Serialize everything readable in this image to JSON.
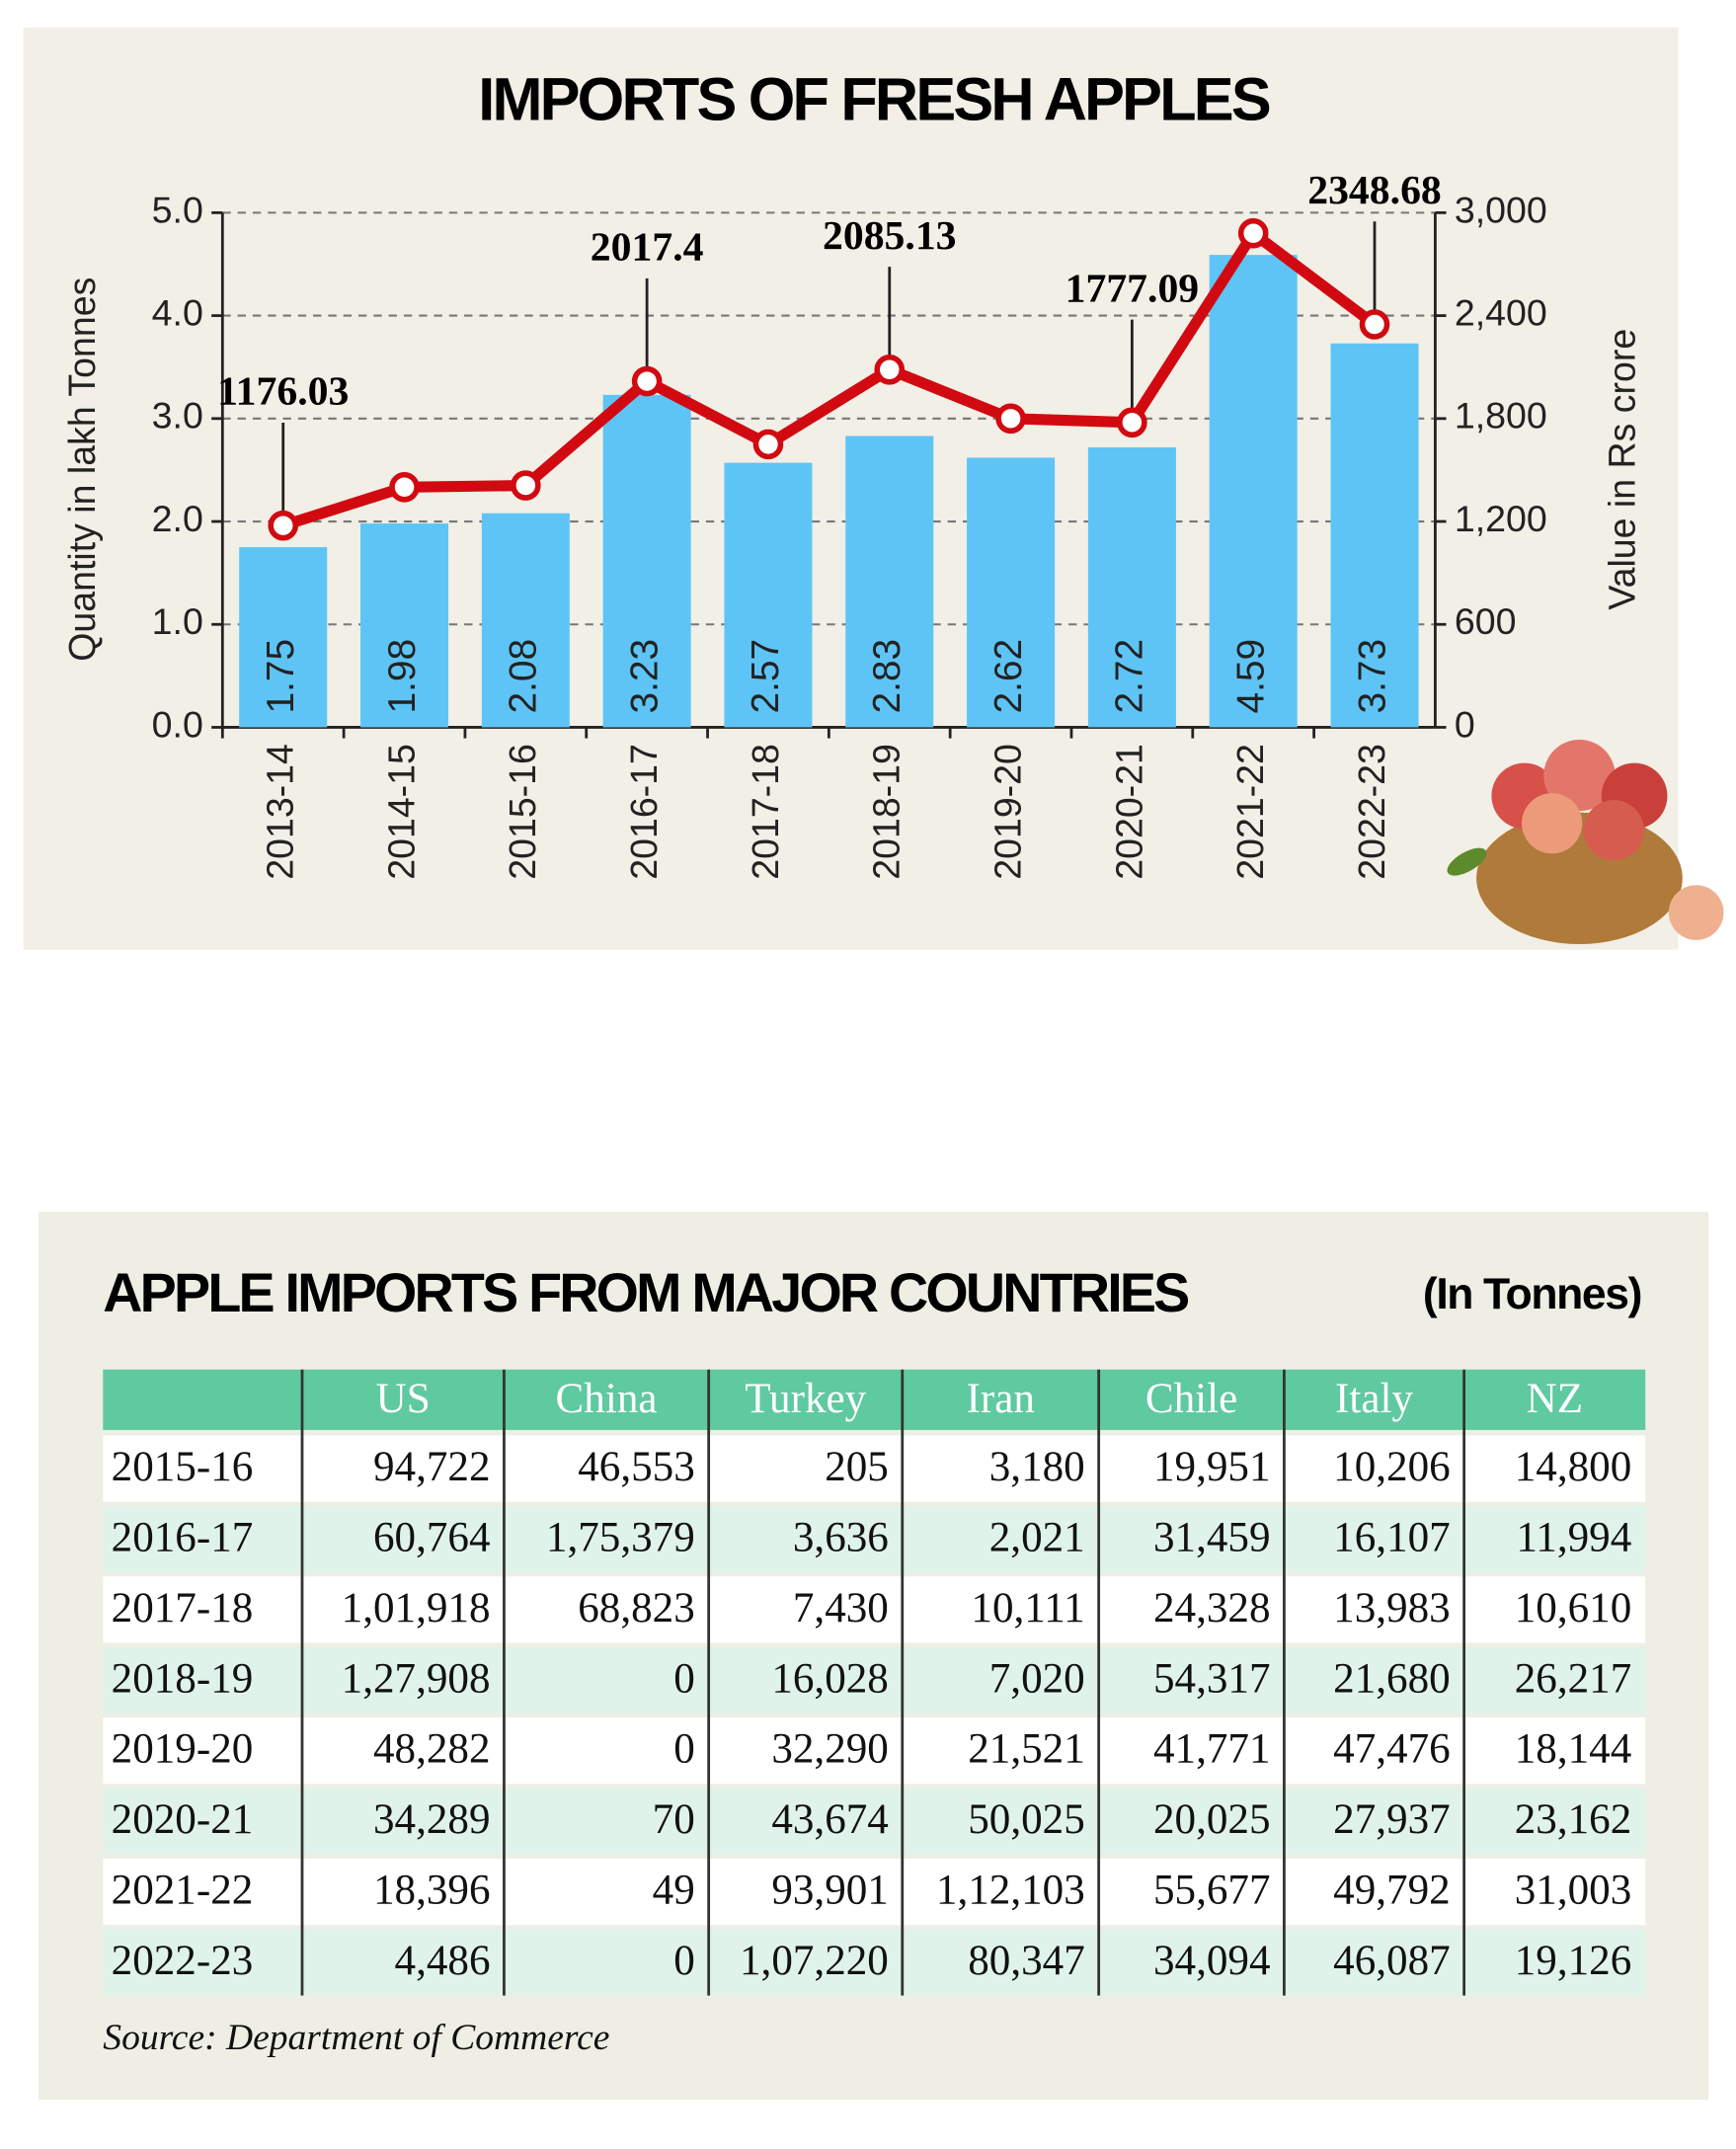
{
  "chart_data": {
    "type": "bar",
    "title": "IMPORTS OF FRESH APPLES",
    "ylabel": "Quantity in lakh Tonnes",
    "y2label": "Value in Rs crore",
    "categories": [
      "2013-14",
      "2014-15",
      "2015-16",
      "2016-17",
      "2017-18",
      "2018-19",
      "2019-20",
      "2020-21",
      "2021-22",
      "2022-23"
    ],
    "series": [
      {
        "type": "bar",
        "color": "#5ec4f6",
        "values": [
          1.75,
          1.98,
          2.08,
          3.23,
          2.57,
          2.83,
          2.62,
          2.72,
          4.59,
          3.73
        ]
      },
      {
        "type": "line",
        "axis": "y2",
        "color": "#d10a11",
        "values": [
          1176.03,
          1400,
          1410,
          2017.4,
          1650,
          2085.13,
          1800,
          1777.09,
          2880,
          2348.68
        ],
        "value_labels": [
          "1176.03",
          null,
          null,
          "2017.4",
          null,
          "2085.13",
          null,
          "1777.09",
          null,
          "2348.68"
        ]
      }
    ],
    "ylim": [
      0,
      5
    ],
    "yticks": [
      {
        "value": 0,
        "label": "0.0"
      },
      {
        "value": 1,
        "label": "1.0"
      },
      {
        "value": 2,
        "label": "2.0"
      },
      {
        "value": 3,
        "label": "3.0"
      },
      {
        "value": 4,
        "label": "4.0"
      },
      {
        "value": 5,
        "label": "5.0"
      }
    ],
    "y2lim": [
      0,
      3000
    ],
    "y2ticks": [
      0,
      600,
      {
        "value": 1200,
        "label": "1,200"
      },
      {
        "value": 1800,
        "label": "1,800"
      },
      {
        "value": 2400,
        "label": "2,400"
      },
      {
        "value": 3000,
        "label": "3,000"
      }
    ],
    "grid": true
  },
  "table": {
    "title": "APPLE IMPORTS FROM MAJOR COUNTRIES",
    "unit": "(In Tonnes)",
    "columns": [
      "US",
      "China",
      "Turkey",
      "Iran",
      "Chile",
      "Italy",
      "NZ"
    ],
    "rows": [
      {
        "year": "2015-16",
        "values": [
          "94,722",
          "46,553",
          "205",
          "3,180",
          "19,951",
          "10,206",
          "14,800"
        ]
      },
      {
        "year": "2016-17",
        "values": [
          "60,764",
          "1,75,379",
          "3,636",
          "2,021",
          "31,459",
          "16,107",
          "11,994"
        ]
      },
      {
        "year": "2017-18",
        "values": [
          "1,01,918",
          "68,823",
          "7,430",
          "10,111",
          "24,328",
          "13,983",
          "10,610"
        ]
      },
      {
        "year": "2018-19",
        "values": [
          "1,27,908",
          "0",
          "16,028",
          "7,020",
          "54,317",
          "21,680",
          "26,217"
        ]
      },
      {
        "year": "2019-20",
        "values": [
          "48,282",
          "0",
          "32,290",
          "21,521",
          "41,771",
          "47,476",
          "18,144"
        ]
      },
      {
        "year": "2020-21",
        "values": [
          "34,289",
          "70",
          "43,674",
          "50,025",
          "20,025",
          "27,937",
          "23,162"
        ]
      },
      {
        "year": "2021-22",
        "values": [
          "18,396",
          "49",
          "93,901",
          "1,12,103",
          "55,677",
          "49,792",
          "31,003"
        ]
      },
      {
        "year": "2022-23",
        "values": [
          "4,486",
          "0",
          "1,07,220",
          "80,347",
          "34,094",
          "46,087",
          "19,126"
        ]
      }
    ],
    "source": "Source: Department of Commerce"
  }
}
